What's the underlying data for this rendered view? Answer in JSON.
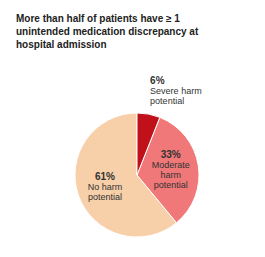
{
  "chart_data": {
    "type": "pie",
    "title": "More than half of patients have ≥ 1\nunintended medication discrepancy at\nhospital admission",
    "categories": [
      "No harm\npotential",
      "Moderate\nharm\npotential",
      "Severe harm\npotential"
    ],
    "values": [
      61,
      33,
      6
    ],
    "value_labels": [
      "61%",
      "33%",
      "6%"
    ],
    "colors": [
      "#f7cfa8",
      "#f07878",
      "#c0101a"
    ],
    "data_labels": true
  }
}
